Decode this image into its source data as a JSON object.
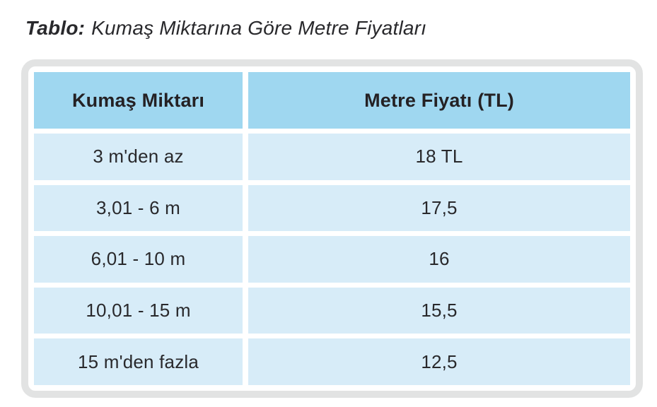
{
  "colors": {
    "frame": "#e2e3e3",
    "header_bg": "#9fd7f0",
    "row_bg": "#d7ecf8",
    "text": "#29292c",
    "header_text": "#242124"
  },
  "title": {
    "label": "Tablo:",
    "text": "Kumaş Miktarına Göre Metre Fiyatları"
  },
  "table": {
    "columns": [
      "Kumaş Miktarı",
      "Metre Fiyatı (TL)"
    ],
    "rows": [
      [
        "3 m'den az",
        "18 TL"
      ],
      [
        "3,01 - 6 m",
        "17,5"
      ],
      [
        "6,01 - 10 m",
        "16"
      ],
      [
        "10,01 - 15 m",
        "15,5"
      ],
      [
        "15 m'den fazla",
        "12,5"
      ]
    ]
  },
  "chart_data": {
    "type": "table",
    "title": "Tablo: Kumaş Miktarına Göre Metre Fiyatları",
    "columns": [
      "Kumaş Miktarı",
      "Metre Fiyatı (TL)"
    ],
    "rows": [
      [
        "3 m'den az",
        "18 TL"
      ],
      [
        "3,01 - 6 m",
        "17,5"
      ],
      [
        "6,01 - 10 m",
        "16"
      ],
      [
        "10,01 - 15 m",
        "15,5"
      ],
      [
        "15 m'den fazla",
        "12,5"
      ]
    ],
    "notes": "Meter price (TL) of fabric by purchased quantity; prices as shown, decimal comma notation"
  }
}
